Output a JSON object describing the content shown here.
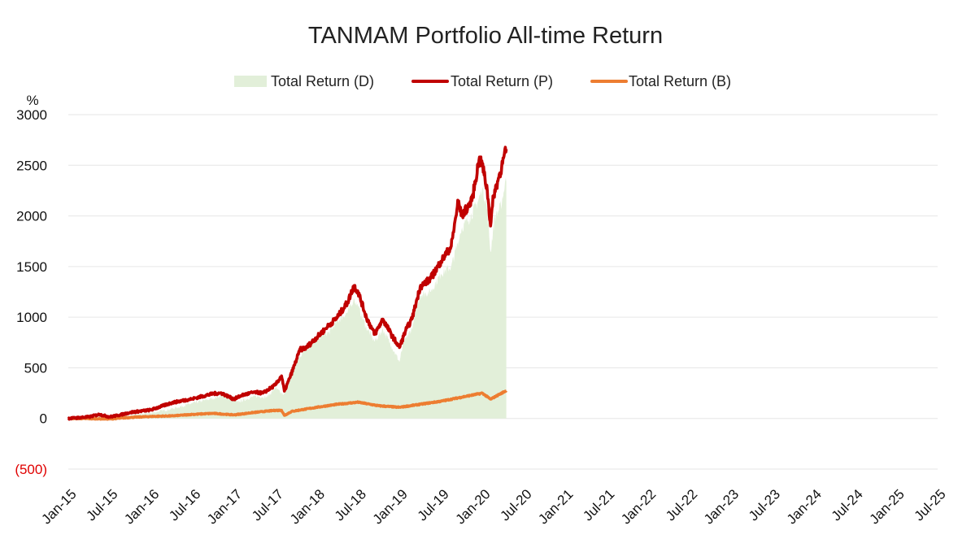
{
  "chart_data": {
    "type": "line",
    "title": "TANMAM Portfolio All-time Return",
    "ylabel": "%",
    "xlabel": "",
    "ylim": [
      -500,
      3000
    ],
    "yticks": [
      3000,
      2500,
      2000,
      1500,
      1000,
      500,
      0,
      -500
    ],
    "ytick_labels": [
      "3000",
      "2500",
      "2000",
      "1500",
      "1000",
      "500",
      "0",
      "(500)"
    ],
    "xticks": [
      "Jan-15",
      "Jul-15",
      "Jan-16",
      "Jul-16",
      "Jan-17",
      "Jul-17",
      "Jan-18",
      "Jul-18",
      "Jan-19",
      "Jul-19",
      "Jan-20",
      "Jul-20",
      "Jan-21",
      "Jul-21",
      "Jan-22",
      "Jul-22",
      "Jan-23",
      "Jul-23",
      "Jan-24",
      "Jul-24",
      "Jan-25",
      "Jul-25"
    ],
    "legend_position": "top-center",
    "grid": true,
    "colors": {
      "D": "#e2efd9",
      "P": "#c00000",
      "B": "#ed7d31"
    },
    "series": [
      {
        "name": "Total Return (D)",
        "style": "area",
        "color": "#e2efd9",
        "points": [
          {
            "t": 0,
            "v": 0
          },
          {
            "t": 0.5,
            "v": 10
          },
          {
            "t": 1,
            "v": 25
          },
          {
            "t": 1.5,
            "v": 30
          },
          {
            "t": 2,
            "v": 55
          },
          {
            "t": 2.5,
            "v": 95
          },
          {
            "t": 3,
            "v": 150
          },
          {
            "t": 3.5,
            "v": 200
          },
          {
            "t": 3.7,
            "v": 225
          },
          {
            "t": 4,
            "v": 210
          },
          {
            "t": 4.08,
            "v": 160
          },
          {
            "t": 4.5,
            "v": 220
          },
          {
            "t": 4.8,
            "v": 210
          },
          {
            "t": 5,
            "v": 300
          },
          {
            "t": 5.2,
            "v": 230
          },
          {
            "t": 5.3,
            "v": 380
          },
          {
            "t": 5.5,
            "v": 560
          },
          {
            "t": 5.75,
            "v": 700
          },
          {
            "t": 6,
            "v": 800
          },
          {
            "t": 6.3,
            "v": 850
          },
          {
            "t": 6.5,
            "v": 960
          },
          {
            "t": 6.75,
            "v": 1050
          },
          {
            "t": 6.9,
            "v": 1180
          },
          {
            "t": 7,
            "v": 1100
          },
          {
            "t": 7.2,
            "v": 900
          },
          {
            "t": 7.4,
            "v": 760
          },
          {
            "t": 7.6,
            "v": 880
          },
          {
            "t": 7.8,
            "v": 720
          },
          {
            "t": 8,
            "v": 560
          },
          {
            "t": 8.1,
            "v": 750
          },
          {
            "t": 8.3,
            "v": 890
          },
          {
            "t": 8.5,
            "v": 1220
          },
          {
            "t": 8.75,
            "v": 1250
          },
          {
            "t": 9,
            "v": 1430
          },
          {
            "t": 9.25,
            "v": 1500
          },
          {
            "t": 9.4,
            "v": 1720
          },
          {
            "t": 9.5,
            "v": 1880
          },
          {
            "t": 9.7,
            "v": 1980
          },
          {
            "t": 9.9,
            "v": 2150
          },
          {
            "t": 10,
            "v": 2270
          },
          {
            "t": 10.1,
            "v": 2130
          },
          {
            "t": 10.2,
            "v": 1650
          },
          {
            "t": 10.3,
            "v": 1980
          },
          {
            "t": 10.45,
            "v": 2100
          },
          {
            "t": 10.58,
            "v": 2380
          }
        ]
      },
      {
        "name": "Total Return (P)",
        "style": "line",
        "color": "#c00000",
        "points": [
          {
            "t": 0,
            "v": 0
          },
          {
            "t": 0.5,
            "v": 15
          },
          {
            "t": 0.75,
            "v": 40
          },
          {
            "t": 1,
            "v": 15
          },
          {
            "t": 1.25,
            "v": 35
          },
          {
            "t": 1.5,
            "v": 60
          },
          {
            "t": 2,
            "v": 85
          },
          {
            "t": 2.5,
            "v": 155
          },
          {
            "t": 3,
            "v": 195
          },
          {
            "t": 3.5,
            "v": 245
          },
          {
            "t": 3.7,
            "v": 250
          },
          {
            "t": 4,
            "v": 190
          },
          {
            "t": 4.2,
            "v": 230
          },
          {
            "t": 4.5,
            "v": 260
          },
          {
            "t": 4.7,
            "v": 250
          },
          {
            "t": 5,
            "v": 330
          },
          {
            "t": 5.15,
            "v": 420
          },
          {
            "t": 5.22,
            "v": 270
          },
          {
            "t": 5.35,
            "v": 400
          },
          {
            "t": 5.6,
            "v": 680
          },
          {
            "t": 5.75,
            "v": 700
          },
          {
            "t": 6,
            "v": 800
          },
          {
            "t": 6.25,
            "v": 900
          },
          {
            "t": 6.5,
            "v": 1000
          },
          {
            "t": 6.75,
            "v": 1150
          },
          {
            "t": 6.9,
            "v": 1310
          },
          {
            "t": 7,
            "v": 1250
          },
          {
            "t": 7.2,
            "v": 1000
          },
          {
            "t": 7.4,
            "v": 830
          },
          {
            "t": 7.6,
            "v": 980
          },
          {
            "t": 7.8,
            "v": 830
          },
          {
            "t": 8,
            "v": 700
          },
          {
            "t": 8.15,
            "v": 870
          },
          {
            "t": 8.3,
            "v": 980
          },
          {
            "t": 8.5,
            "v": 1300
          },
          {
            "t": 8.75,
            "v": 1380
          },
          {
            "t": 9,
            "v": 1550
          },
          {
            "t": 9.25,
            "v": 1700
          },
          {
            "t": 9.42,
            "v": 2150
          },
          {
            "t": 9.5,
            "v": 2000
          },
          {
            "t": 9.75,
            "v": 2150
          },
          {
            "t": 9.92,
            "v": 2550
          },
          {
            "t": 10,
            "v": 2510
          },
          {
            "t": 10.12,
            "v": 2250
          },
          {
            "t": 10.2,
            "v": 1900
          },
          {
            "t": 10.27,
            "v": 2200
          },
          {
            "t": 10.4,
            "v": 2380
          },
          {
            "t": 10.58,
            "v": 2660
          }
        ]
      },
      {
        "name": "Total Return (B)",
        "style": "line",
        "color": "#ed7d31",
        "points": [
          {
            "t": 0,
            "v": 0
          },
          {
            "t": 1,
            "v": -5
          },
          {
            "t": 1.5,
            "v": 10
          },
          {
            "t": 2,
            "v": 20
          },
          {
            "t": 2.5,
            "v": 25
          },
          {
            "t": 3,
            "v": 40
          },
          {
            "t": 3.5,
            "v": 50
          },
          {
            "t": 4,
            "v": 35
          },
          {
            "t": 4.5,
            "v": 60
          },
          {
            "t": 5,
            "v": 80
          },
          {
            "t": 5.15,
            "v": 80
          },
          {
            "t": 5.22,
            "v": 30
          },
          {
            "t": 5.4,
            "v": 70
          },
          {
            "t": 6,
            "v": 110
          },
          {
            "t": 6.5,
            "v": 140
          },
          {
            "t": 7,
            "v": 160
          },
          {
            "t": 7.5,
            "v": 125
          },
          {
            "t": 8,
            "v": 110
          },
          {
            "t": 8.5,
            "v": 140
          },
          {
            "t": 9,
            "v": 170
          },
          {
            "t": 9.5,
            "v": 210
          },
          {
            "t": 10,
            "v": 250
          },
          {
            "t": 10.2,
            "v": 190
          },
          {
            "t": 10.4,
            "v": 235
          },
          {
            "t": 10.58,
            "v": 275
          }
        ]
      }
    ]
  }
}
